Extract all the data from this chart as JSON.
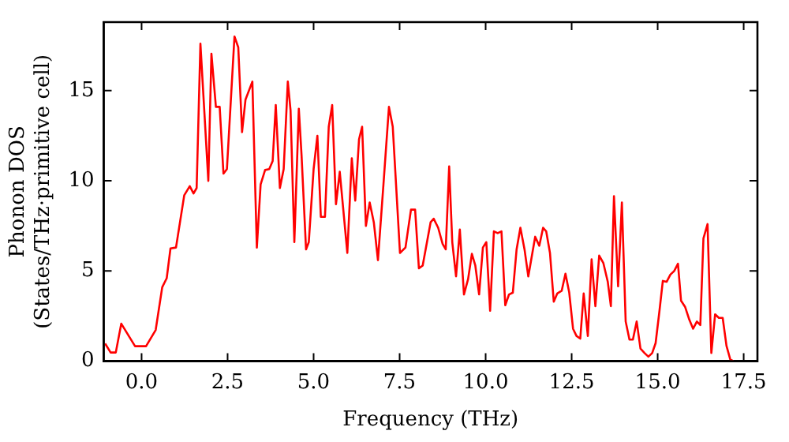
{
  "chart_data": {
    "type": "line",
    "xlabel": "Frequency (THz)",
    "ylabel": "Phonon DOS\n(States/THz·primitive cell)",
    "xlim": [
      -1.1,
      17.9
    ],
    "ylim": [
      0,
      18.8
    ],
    "xticks": [
      {
        "value": 0,
        "label": "0.0"
      },
      {
        "value": 2.5,
        "label": "2.5"
      },
      {
        "value": 5,
        "label": "5.0"
      },
      {
        "value": 7.5,
        "label": "7.5"
      },
      {
        "value": 10,
        "label": "10.0"
      },
      {
        "value": 12.5,
        "label": "12.5"
      },
      {
        "value": 15,
        "label": "15.0"
      },
      {
        "value": 17.5,
        "label": "17.5"
      }
    ],
    "yticks": [
      0,
      5,
      10,
      15
    ],
    "grid": false,
    "legend": false,
    "marker": "none",
    "line_style": "solid",
    "series": [
      {
        "color": "#ff0000",
        "x": [
          -1.06,
          -0.9,
          -0.75,
          -0.59,
          -0.19,
          0.13,
          0.41,
          0.6,
          0.73,
          0.84,
          1.0,
          1.24,
          1.4,
          1.51,
          1.6,
          1.71,
          1.94,
          2.03,
          2.16,
          2.27,
          2.38,
          2.48,
          2.7,
          2.81,
          2.92,
          3.02,
          3.22,
          3.35,
          3.46,
          3.59,
          3.71,
          3.81,
          3.9,
          4.02,
          4.13,
          4.25,
          4.33,
          4.44,
          4.57,
          4.65,
          4.78,
          4.86,
          5.0,
          5.11,
          5.21,
          5.33,
          5.44,
          5.54,
          5.65,
          5.76,
          5.98,
          6.11,
          6.21,
          6.32,
          6.41,
          6.52,
          6.63,
          6.75,
          6.87,
          7.03,
          7.19,
          7.3,
          7.51,
          7.67,
          7.83,
          7.95,
          8.06,
          8.17,
          8.4,
          8.49,
          8.62,
          8.75,
          8.84,
          8.94,
          9.03,
          9.14,
          9.25,
          9.37,
          9.49,
          9.6,
          9.7,
          9.81,
          9.92,
          10.02,
          10.13,
          10.24,
          10.35,
          10.46,
          10.57,
          10.68,
          10.79,
          10.9,
          11.01,
          11.13,
          11.24,
          11.44,
          11.56,
          11.67,
          11.76,
          11.87,
          11.98,
          12.08,
          12.21,
          12.32,
          12.43,
          12.54,
          12.64,
          12.75,
          12.85,
          12.97,
          13.08,
          13.19,
          13.3,
          13.42,
          13.55,
          13.64,
          13.73,
          13.85,
          13.96,
          14.07,
          14.18,
          14.28,
          14.39,
          14.5,
          14.62,
          14.73,
          14.84,
          14.94,
          15.05,
          15.15,
          15.26,
          15.37,
          15.48,
          15.59,
          15.68,
          15.8,
          15.92,
          16.03,
          16.14,
          16.24,
          16.33,
          16.45,
          16.56,
          16.67,
          16.78,
          16.89,
          17.0,
          17.11,
          17.2
        ],
        "values": [
          0.98,
          0.48,
          0.48,
          2.08,
          0.83,
          0.83,
          1.73,
          4.1,
          4.6,
          6.25,
          6.3,
          9.2,
          9.7,
          9.3,
          9.6,
          17.6,
          10.0,
          17.05,
          14.1,
          14.1,
          10.4,
          10.65,
          18.0,
          17.4,
          12.7,
          14.5,
          15.5,
          6.3,
          9.8,
          10.6,
          10.65,
          11.1,
          14.2,
          9.6,
          10.65,
          15.5,
          13.9,
          6.6,
          14.0,
          11.4,
          6.2,
          6.6,
          10.65,
          12.5,
          8.0,
          8.0,
          13.0,
          14.2,
          8.7,
          10.5,
          6.0,
          11.25,
          8.9,
          12.3,
          13.0,
          7.5,
          8.8,
          7.7,
          5.6,
          9.8,
          14.1,
          13.0,
          6.0,
          6.3,
          8.4,
          8.4,
          5.15,
          5.3,
          7.7,
          7.9,
          7.4,
          6.5,
          6.2,
          10.8,
          6.6,
          4.7,
          7.3,
          3.7,
          4.55,
          5.95,
          5.3,
          3.7,
          6.3,
          6.6,
          2.8,
          7.2,
          7.1,
          7.2,
          3.1,
          3.7,
          3.8,
          6.2,
          7.4,
          6.2,
          4.7,
          6.9,
          6.4,
          7.4,
          7.2,
          6.0,
          3.3,
          3.75,
          3.9,
          4.85,
          3.8,
          1.8,
          1.4,
          1.25,
          3.75,
          1.4,
          5.65,
          3.05,
          5.85,
          5.45,
          4.4,
          3.05,
          9.15,
          4.15,
          8.8,
          2.2,
          1.2,
          1.2,
          2.2,
          0.7,
          0.45,
          0.25,
          0.45,
          1.0,
          2.75,
          4.45,
          4.4,
          4.8,
          5.0,
          5.4,
          3.35,
          3.0,
          2.3,
          1.8,
          2.2,
          2.0,
          6.8,
          7.6,
          0.45,
          2.6,
          2.4,
          2.4,
          0.85,
          0.1,
          0
        ]
      }
    ]
  }
}
